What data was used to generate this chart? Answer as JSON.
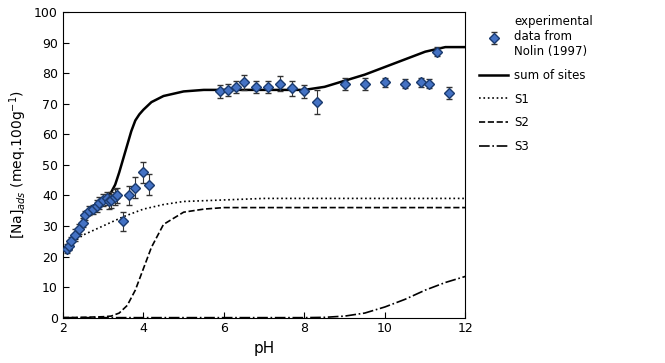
{
  "title": "",
  "xlabel": "pH",
  "ylabel": "[Na]$_{ads}$ (meq.100g$^{-1}$)",
  "xlim": [
    2,
    12
  ],
  "ylim": [
    0,
    100
  ],
  "yticks": [
    0,
    10,
    20,
    30,
    40,
    50,
    60,
    70,
    80,
    90,
    100
  ],
  "xticks": [
    2,
    4,
    6,
    8,
    10,
    12
  ],
  "bg_color": "#ffffff",
  "exp_x": [
    2.1,
    2.15,
    2.2,
    2.3,
    2.4,
    2.5,
    2.55,
    2.65,
    2.75,
    2.85,
    2.9,
    3.0,
    3.1,
    3.15,
    3.2,
    3.3,
    3.35,
    3.5,
    3.65,
    3.8,
    4.0,
    4.15,
    5.9,
    6.1,
    6.3,
    6.5,
    6.8,
    7.1,
    7.4,
    7.7,
    8.0,
    8.3,
    9.0,
    9.5,
    10.0,
    10.5,
    10.9,
    11.1,
    11.3,
    11.6
  ],
  "exp_y": [
    22.5,
    23.5,
    25.0,
    27.0,
    29.0,
    31.0,
    33.5,
    35.0,
    35.5,
    36.5,
    37.5,
    38.5,
    39.0,
    38.0,
    38.5,
    39.5,
    40.0,
    31.5,
    40.0,
    42.5,
    47.5,
    43.5,
    74.0,
    74.5,
    75.5,
    77.0,
    75.5,
    75.5,
    76.5,
    75.0,
    74.0,
    70.5,
    76.5,
    76.5,
    77.0,
    76.5,
    77.0,
    76.5,
    87.0,
    73.5
  ],
  "exp_yerr": [
    1.5,
    1.5,
    1.5,
    2.0,
    1.5,
    1.5,
    1.5,
    1.5,
    1.5,
    2.0,
    2.0,
    2.0,
    2.0,
    2.5,
    2.5,
    2.5,
    2.5,
    3.0,
    3.0,
    3.5,
    3.5,
    3.5,
    2.0,
    2.0,
    2.0,
    2.5,
    2.0,
    2.0,
    2.5,
    2.5,
    2.0,
    4.0,
    2.0,
    2.0,
    1.5,
    1.5,
    1.5,
    1.5,
    1.5,
    2.0
  ],
  "exp_color": "#4472c4",
  "sum_x": [
    2.0,
    2.1,
    2.2,
    2.3,
    2.4,
    2.5,
    2.6,
    2.7,
    2.8,
    2.9,
    3.0,
    3.1,
    3.2,
    3.3,
    3.4,
    3.5,
    3.6,
    3.7,
    3.8,
    3.9,
    4.0,
    4.2,
    4.5,
    5.0,
    5.5,
    6.0,
    6.5,
    7.0,
    7.5,
    8.0,
    8.5,
    9.0,
    9.5,
    10.0,
    10.5,
    11.0,
    11.5,
    12.0
  ],
  "sum_y": [
    22.0,
    23.5,
    25.0,
    27.0,
    29.5,
    32.0,
    34.0,
    35.5,
    36.5,
    37.5,
    38.5,
    39.5,
    41.0,
    43.5,
    47.5,
    52.0,
    56.5,
    61.0,
    64.5,
    66.5,
    68.0,
    70.5,
    72.5,
    74.0,
    74.5,
    74.5,
    74.5,
    74.5,
    74.5,
    74.5,
    75.5,
    77.5,
    79.5,
    82.0,
    84.5,
    87.0,
    88.5,
    88.5
  ],
  "s1_x": [
    2.0,
    2.5,
    3.0,
    3.5,
    4.0,
    4.5,
    5.0,
    6.0,
    7.0,
    8.0,
    9.0,
    10.0,
    11.0,
    12.0
  ],
  "s1_y": [
    22.0,
    27.0,
    30.0,
    33.0,
    35.5,
    37.0,
    38.0,
    38.5,
    39.0,
    39.0,
    39.0,
    39.0,
    39.0,
    39.0
  ],
  "s2_x": [
    2.0,
    2.5,
    3.0,
    3.2,
    3.4,
    3.6,
    3.8,
    4.0,
    4.2,
    4.5,
    5.0,
    5.5,
    6.0,
    7.0,
    8.0,
    9.0,
    10.0,
    11.0,
    12.0
  ],
  "s2_y": [
    0.0,
    0.1,
    0.3,
    0.5,
    1.5,
    4.0,
    9.0,
    16.0,
    23.0,
    30.5,
    34.5,
    35.5,
    36.0,
    36.0,
    36.0,
    36.0,
    36.0,
    36.0,
    36.0
  ],
  "s3_x": [
    2.0,
    3.0,
    4.0,
    5.0,
    6.0,
    7.0,
    8.0,
    8.5,
    9.0,
    9.5,
    10.0,
    10.5,
    11.0,
    11.5,
    12.0
  ],
  "s3_y": [
    0.0,
    0.0,
    0.0,
    0.0,
    0.0,
    0.0,
    0.0,
    0.1,
    0.5,
    1.5,
    3.5,
    6.0,
    9.0,
    11.5,
    13.5
  ],
  "legend_labels": [
    "experimental\ndata from\nNolin (1997)",
    "sum of sites",
    "S1",
    "S2",
    "S3"
  ],
  "line_color": "#000000"
}
